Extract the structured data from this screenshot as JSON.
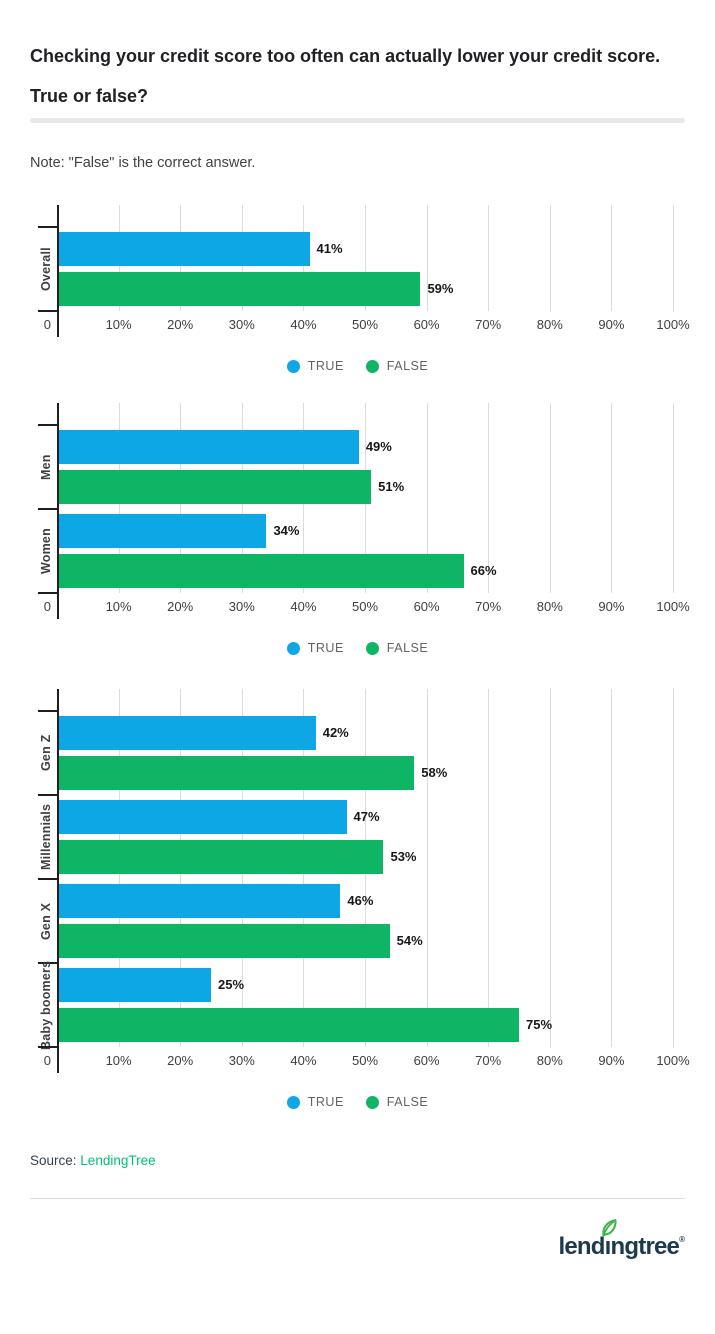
{
  "header": {
    "title_line1": "Checking your credit score too often can actually lower your credit score.",
    "title_line2": "True or false?",
    "note": "Note: \"False\" is the correct answer."
  },
  "legend": {
    "true_label": "TRUE",
    "false_label": "FALSE"
  },
  "colors": {
    "true_bar": "#0ea7e5",
    "false_bar": "#0eb564",
    "gridline": "#dcdcdc",
    "axis": "#1f1f1f",
    "legend_text": "#5f6368",
    "source_link_green": "#00c077",
    "logo_navy": "#1b3a4d",
    "leaf_green": "#3bb54a"
  },
  "chart_data": [
    {
      "type": "bar",
      "orientation": "horizontal",
      "categories": [
        "Overall"
      ],
      "series": [
        {
          "name": "TRUE",
          "color_key": "true_bar",
          "values": [
            41
          ]
        },
        {
          "name": "FALSE",
          "color_key": "false_bar",
          "values": [
            59
          ]
        }
      ],
      "value_labels": [
        [
          "41%"
        ],
        [
          "59%"
        ]
      ],
      "value_suffix": "%",
      "xlim": [
        0,
        100
      ],
      "x_ticks": [
        "0",
        "10%",
        "20%",
        "30%",
        "40%",
        "50%",
        "60%",
        "70%",
        "80%",
        "90%",
        "100%"
      ],
      "grid": true,
      "legend_position": "bottom"
    },
    {
      "type": "bar",
      "orientation": "horizontal",
      "categories": [
        "Men",
        "Women"
      ],
      "series": [
        {
          "name": "TRUE",
          "color_key": "true_bar",
          "values": [
            49,
            34
          ]
        },
        {
          "name": "FALSE",
          "color_key": "false_bar",
          "values": [
            51,
            66
          ]
        }
      ],
      "value_labels": [
        [
          "49%",
          "34%"
        ],
        [
          "51%",
          "66%"
        ]
      ],
      "value_suffix": "%",
      "xlim": [
        0,
        100
      ],
      "x_ticks": [
        "0",
        "10%",
        "20%",
        "30%",
        "40%",
        "50%",
        "60%",
        "70%",
        "80%",
        "90%",
        "100%"
      ],
      "grid": true,
      "legend_position": "bottom"
    },
    {
      "type": "bar",
      "orientation": "horizontal",
      "categories": [
        "Gen Z",
        "Millennials",
        "Gen X",
        "Baby boomers"
      ],
      "series": [
        {
          "name": "TRUE",
          "color_key": "true_bar",
          "values": [
            42,
            47,
            46,
            25
          ]
        },
        {
          "name": "FALSE",
          "color_key": "false_bar",
          "values": [
            58,
            53,
            54,
            75
          ]
        }
      ],
      "value_labels": [
        [
          "42%",
          "47%",
          "46%",
          "25%"
        ],
        [
          "58%",
          "53%",
          "54%",
          "75%"
        ]
      ],
      "value_suffix": "%",
      "xlim": [
        0,
        100
      ],
      "x_ticks": [
        "0",
        "10%",
        "20%",
        "30%",
        "40%",
        "50%",
        "60%",
        "70%",
        "80%",
        "90%",
        "100%"
      ],
      "grid": true,
      "legend_position": "bottom"
    }
  ],
  "footer": {
    "source_label": "Source:",
    "source_name": "LendingTree",
    "logo_text_left": "lend",
    "logo_text_i": "ı",
    "logo_text_right": "ngtree",
    "logo_registered": "®"
  }
}
